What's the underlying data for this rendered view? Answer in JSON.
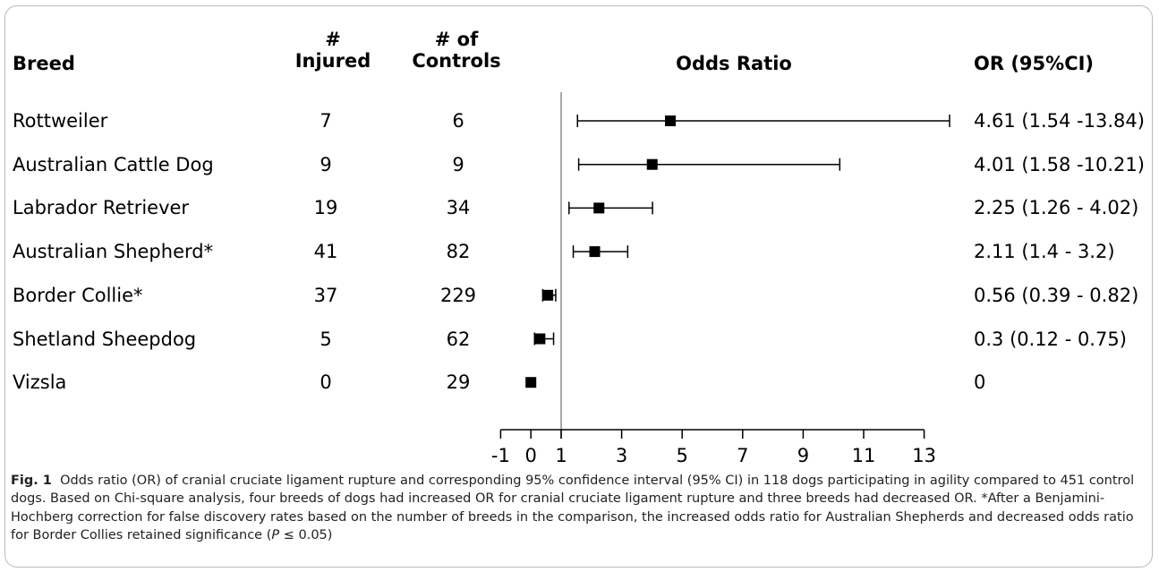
{
  "headers": {
    "breed": "Breed",
    "injured_line1": "#",
    "injured_line2": "Injured",
    "controls_line1": "# of",
    "controls_line2": "Controls",
    "odds_ratio": "Odds Ratio",
    "or_ci": "OR (95%CI)"
  },
  "chart_data": {
    "type": "forest",
    "reference_line": 1,
    "x_ticks": [
      "-1",
      "0",
      "1",
      "3",
      "5",
      "7",
      "9",
      "11",
      "13"
    ],
    "xlim": [
      -1,
      13
    ],
    "grid": false,
    "rows": [
      {
        "breed": "Rottweiler",
        "injured": "7",
        "controls": "6",
        "or": 4.61,
        "lo": 1.54,
        "hi": 13.84,
        "label": "4.61 (1.54 -13.84)"
      },
      {
        "breed": "Australian Cattle Dog",
        "injured": "9",
        "controls": "9",
        "or": 4.01,
        "lo": 1.58,
        "hi": 10.21,
        "label": "4.01 (1.58 -10.21)"
      },
      {
        "breed": "Labrador Retriever",
        "injured": "19",
        "controls": "34",
        "or": 2.25,
        "lo": 1.26,
        "hi": 4.02,
        "label": "2.25 (1.26 - 4.02)"
      },
      {
        "breed": "Australian Shepherd*",
        "injured": "41",
        "controls": "82",
        "or": 2.11,
        "lo": 1.4,
        "hi": 3.2,
        "label": "2.11 (1.4 - 3.2)"
      },
      {
        "breed": "Border Collie*",
        "injured": "37",
        "controls": "229",
        "or": 0.56,
        "lo": 0.39,
        "hi": 0.82,
        "label": "0.56 (0.39 - 0.82)"
      },
      {
        "breed": "Shetland Sheepdog",
        "injured": "5",
        "controls": "62",
        "or": 0.3,
        "lo": 0.12,
        "hi": 0.75,
        "label": "0.3 (0.12 - 0.75)"
      },
      {
        "breed": "Vizsla",
        "injured": "0",
        "controls": "29",
        "or": 0,
        "lo": null,
        "hi": null,
        "label": "0"
      }
    ]
  },
  "caption": {
    "label": "Fig. 1",
    "text": "Odds ratio (OR) of cranial cruciate ligament rupture and corresponding 95% confidence interval (95% CI) in 118 dogs participating in agility compared to 451 control dogs. Based on Chi-square analysis, four breeds of dogs had increased OR for cranial cruciate ligament rupture and three breeds had decreased OR. *After a Benjamini-Hochberg correction for false discovery rates based on the number of breeds in the comparison, the increased odds ratio for Australian Shepherds and decreased odds ratio for Border Collies retained significance (",
    "p_symbol": "P",
    "p_rest": " ≤ 0.05)"
  },
  "colors": {
    "mark": "#000000",
    "reference_line": "#aaaaaa",
    "frame": "#b8b8b8"
  }
}
